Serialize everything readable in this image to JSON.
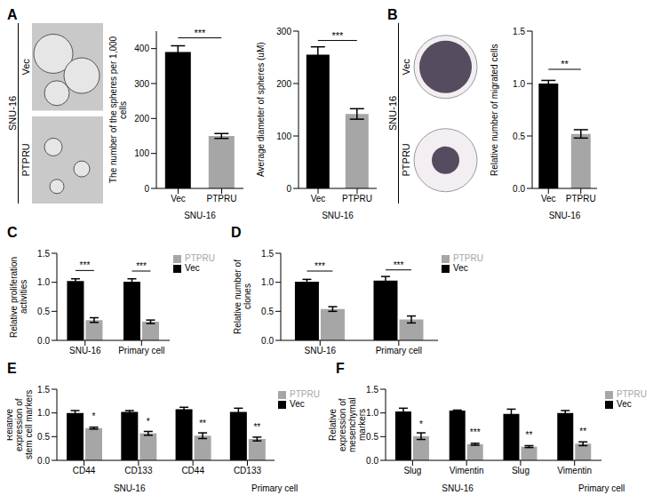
{
  "chart_data": [
    {
      "type": "image",
      "panel": "A",
      "group": "SNU-16",
      "labels": [
        "Vec",
        "PTPRU"
      ]
    },
    {
      "type": "bar",
      "categories": [
        "Vec",
        "PTPRU"
      ],
      "values": [
        390,
        150
      ],
      "errors": [
        18,
        7
      ],
      "colors": [
        "#000000",
        "#a6a6a6"
      ],
      "ylabel": "The number of the spheres per 1,000 cells",
      "xlabel": "SNU-16",
      "ylim": [
        0,
        450
      ],
      "yticks": [
        0,
        100,
        200,
        300,
        400
      ],
      "annotations": [
        "***"
      ]
    },
    {
      "type": "bar",
      "categories": [
        "Vec",
        "PTPRU"
      ],
      "values": [
        255,
        142
      ],
      "errors": [
        15,
        10
      ],
      "colors": [
        "#000000",
        "#a6a6a6"
      ],
      "ylabel": "Average diameter of spheres (uM)",
      "xlabel": "SNU-16",
      "ylim": [
        0,
        300
      ],
      "yticks": [
        0,
        100,
        200,
        300
      ],
      "annotations": [
        "***"
      ]
    },
    {
      "type": "image",
      "panel": "B",
      "group": "SNU-16",
      "labels": [
        "Vec",
        "PTPRU"
      ]
    },
    {
      "type": "bar",
      "categories": [
        "Vec",
        "PTPRU"
      ],
      "values": [
        1.0,
        0.52
      ],
      "errors": [
        0.03,
        0.04
      ],
      "colors": [
        "#000000",
        "#a6a6a6"
      ],
      "ylabel": "Relative number of migrated cells",
      "xlabel": "SNU-16",
      "ylim": [
        0,
        1.5
      ],
      "yticks": [
        {
          "value": 0,
          "label": "0.0"
        },
        {
          "value": 0.5,
          "label": "0.5"
        },
        {
          "value": 1,
          "label": "1.0"
        },
        {
          "value": 1.5,
          "label": "1.5"
        }
      ],
      "annotations": [
        "**"
      ]
    },
    {
      "type": "bar",
      "panel": "C",
      "categories": [
        "SNU-16",
        "Primary cell"
      ],
      "series": [
        {
          "name": "Vec",
          "color": "#000000",
          "values": [
            1.02,
            1.01
          ],
          "errors": [
            0.04,
            0.05
          ]
        },
        {
          "name": "PTPRU",
          "color": "#a6a6a6",
          "values": [
            0.35,
            0.32
          ],
          "errors": [
            0.04,
            0.03
          ]
        }
      ],
      "ylabel": "Relative proliferation activities",
      "ylim": [
        0,
        1.5
      ],
      "yticks": [
        {
          "value": 0,
          "label": "0.0"
        },
        {
          "value": 0.5,
          "label": "0.5"
        },
        {
          "value": 1,
          "label": "1.0"
        },
        {
          "value": 1.5,
          "label": "1.5"
        }
      ],
      "annotations": [
        "***",
        "***"
      ],
      "legend": "upper right"
    },
    {
      "type": "bar",
      "panel": "D",
      "categories": [
        "SNU-16",
        "Primary cell"
      ],
      "series": [
        {
          "name": "Vec",
          "color": "#000000",
          "values": [
            1.01,
            1.03
          ],
          "errors": [
            0.04,
            0.07
          ]
        },
        {
          "name": "PTPRU",
          "color": "#a6a6a6",
          "values": [
            0.54,
            0.36
          ],
          "errors": [
            0.04,
            0.06
          ]
        }
      ],
      "ylabel": "Relative number of clones",
      "ylim": [
        0,
        1.5
      ],
      "yticks": [
        {
          "value": 0,
          "label": "0.0"
        },
        {
          "value": 0.5,
          "label": "0.5"
        },
        {
          "value": 1,
          "label": "1.0"
        },
        {
          "value": 1.5,
          "label": "1.5"
        }
      ],
      "annotations": [
        "***",
        "***"
      ],
      "legend": "upper right"
    },
    {
      "type": "bar",
      "panel": "E",
      "categories": [
        "CD44",
        "CD133",
        "CD44",
        "CD133"
      ],
      "group_labels": [
        "SNU-16",
        "Primary cell"
      ],
      "series": [
        {
          "name": "Vec",
          "color": "#000000",
          "values": [
            1.0,
            1.02,
            1.08,
            1.02
          ],
          "errors": [
            0.05,
            0.03,
            0.04,
            0.08
          ]
        },
        {
          "name": "PTPRU",
          "color": "#a6a6a6",
          "values": [
            0.68,
            0.57,
            0.52,
            0.45
          ],
          "errors": [
            0.02,
            0.04,
            0.06,
            0.04
          ]
        }
      ],
      "ylabel": "Relative expression of stem cell markers",
      "ylim": [
        0,
        1.5
      ],
      "yticks": [
        {
          "value": 0,
          "label": "0.0"
        },
        {
          "value": 0.5,
          "label": "0.5"
        },
        {
          "value": 1,
          "label": "1.0"
        },
        {
          "value": 1.5,
          "label": "1.5"
        }
      ],
      "annotations": [
        "*",
        "*",
        "**",
        "**"
      ],
      "legend": "upper right"
    },
    {
      "type": "bar",
      "panel": "F",
      "categories": [
        "Slug",
        "Vimentin",
        "Slug",
        "Vimentin"
      ],
      "group_labels": [
        "SNU-16",
        "Primary cell"
      ],
      "series": [
        {
          "name": "Vec",
          "color": "#000000",
          "values": [
            1.03,
            1.05,
            0.98,
            1.0
          ],
          "errors": [
            0.07,
            0.01,
            0.1,
            0.05
          ]
        },
        {
          "name": "PTPRU",
          "color": "#a6a6a6",
          "values": [
            0.51,
            0.34,
            0.29,
            0.35
          ],
          "errors": [
            0.07,
            0.02,
            0.02,
            0.04
          ]
        }
      ],
      "ylabel": "Relative expression of mesenchymal markers",
      "ylim": [
        0,
        1.5
      ],
      "yticks": [
        {
          "value": 0,
          "label": "0.0"
        },
        {
          "value": 0.5,
          "label": "0.5"
        },
        {
          "value": 1,
          "label": "1.0"
        },
        {
          "value": 1.5,
          "label": "1.5"
        }
      ],
      "annotations": [
        "*",
        "***",
        "**",
        "**"
      ],
      "legend": "upper right"
    }
  ]
}
